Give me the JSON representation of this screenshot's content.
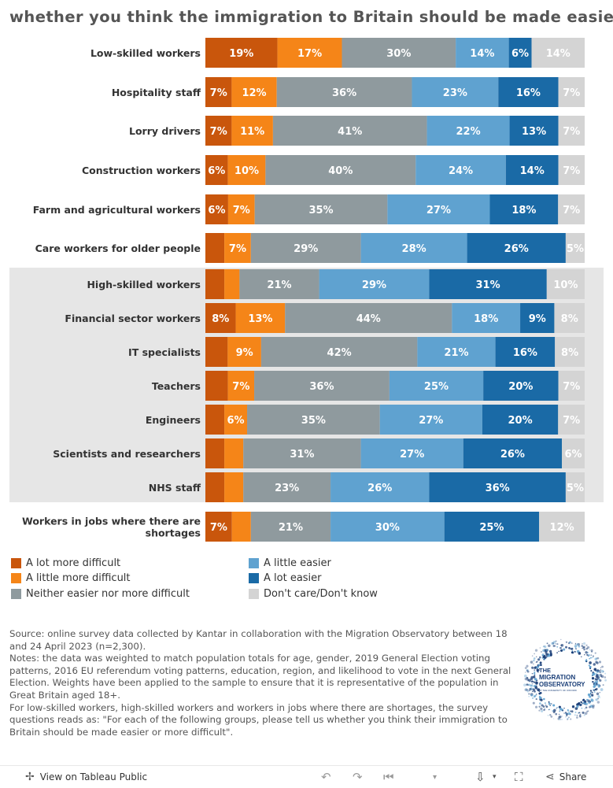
{
  "title": "whether you think the immigration to Britain should be made easier or",
  "chart_data": {
    "type": "bar",
    "orientation": "horizontal",
    "stacked": true,
    "normalized": true,
    "series": [
      {
        "name": "A lot more difficult",
        "color": "#c9560c"
      },
      {
        "name": "A little more difficult",
        "color": "#f58518"
      },
      {
        "name": "Neither easier nor more difficult",
        "color": "#8f9a9e"
      },
      {
        "name": "A little easier",
        "color": "#5fa2d0"
      },
      {
        "name": "A lot easier",
        "color": "#1a6aa6"
      },
      {
        "name": "Don't care/Don't know",
        "color": "#d4d4d4"
      }
    ],
    "rows": [
      {
        "label": "Low-skilled workers",
        "values": [
          19,
          17,
          30,
          14,
          6,
          14
        ],
        "labels": [
          "19%",
          "17%",
          "30%",
          "14%",
          "6%",
          "14%"
        ]
      },
      {
        "label": "Hospitality staff",
        "values": [
          7,
          12,
          36,
          23,
          16,
          7
        ],
        "labels": [
          "7%",
          "12%",
          "36%",
          "23%",
          "16%",
          "7%"
        ]
      },
      {
        "label": "Lorry drivers",
        "values": [
          7,
          11,
          41,
          22,
          13,
          7
        ],
        "labels": [
          "7%",
          "11%",
          "41%",
          "22%",
          "13%",
          "7%"
        ]
      },
      {
        "label": "Construction workers",
        "values": [
          6,
          10,
          40,
          24,
          14,
          7
        ],
        "labels": [
          "6%",
          "10%",
          "40%",
          "24%",
          "14%",
          "7%"
        ]
      },
      {
        "label": "Farm and agricultural workers",
        "values": [
          6,
          7,
          35,
          27,
          18,
          7
        ],
        "labels": [
          "6%",
          "7%",
          "35%",
          "27%",
          "18%",
          "7%"
        ]
      },
      {
        "label": "Care workers for older people",
        "values": [
          5,
          7,
          29,
          28,
          26,
          5
        ],
        "labels": [
          "",
          "7%",
          "29%",
          "28%",
          "26%",
          "5%"
        ]
      },
      {
        "label": "High-skilled workers",
        "values": [
          5,
          4,
          21,
          29,
          31,
          10
        ],
        "labels": [
          "",
          "",
          "21%",
          "29%",
          "31%",
          "10%"
        ]
      },
      {
        "label": "Financial sector workers",
        "values": [
          8,
          13,
          44,
          18,
          9,
          8
        ],
        "labels": [
          "8%",
          "13%",
          "44%",
          "18%",
          "9%",
          "8%"
        ]
      },
      {
        "label": "IT specialists",
        "values": [
          6,
          9,
          42,
          21,
          16,
          8
        ],
        "labels": [
          "",
          "9%",
          "42%",
          "21%",
          "16%",
          "8%"
        ]
      },
      {
        "label": "Teachers",
        "values": [
          6,
          7,
          36,
          25,
          20,
          7
        ],
        "labels": [
          "",
          "7%",
          "36%",
          "25%",
          "20%",
          "7%"
        ]
      },
      {
        "label": "Engineers",
        "values": [
          5,
          6,
          35,
          27,
          20,
          7
        ],
        "labels": [
          "",
          "6%",
          "35%",
          "27%",
          "20%",
          "7%"
        ]
      },
      {
        "label": "Scientists and researchers",
        "values": [
          5,
          5,
          31,
          27,
          26,
          6
        ],
        "labels": [
          "",
          "",
          "31%",
          "27%",
          "26%",
          "6%"
        ]
      },
      {
        "label": "NHS staff",
        "values": [
          5,
          5,
          23,
          26,
          36,
          5
        ],
        "labels": [
          "",
          "",
          "23%",
          "26%",
          "36%",
          "5%"
        ]
      },
      {
        "label": "Workers in jobs where there are shortages",
        "values": [
          7,
          5,
          21,
          30,
          25,
          12
        ],
        "labels": [
          "7%",
          "",
          "21%",
          "30%",
          "25%",
          "12%"
        ]
      }
    ],
    "highlighted_group": [
      "High-skilled workers",
      "Financial sector workers",
      "IT specialists",
      "Teachers",
      "Engineers",
      "Scientists and researchers",
      "NHS staff"
    ],
    "legend_position": "bottom"
  },
  "source": {
    "line1": "Source: online survey data collected by Kantar in collaboration with the Migration Observatory between 18 and 24 April 2023 (n=2,300).",
    "line2": "Notes: the data was weighted to match population totals for age, gender, 2019 General Election voting patterns, 2016 EU referendum voting patterns, education, region, and likelihood to vote in the next General Election. Weights have been applied to the sample to ensure that it is representative of the population in Great Britain aged 18+.",
    "line3": "For low-skilled workers, high-skilled workers and workers in jobs where there are shortages, the survey questions reads as: \"For each of the following groups, please tell us whether you think their immigration to Britain should be made easier or more difficult\"."
  },
  "logo": {
    "line1": "THE",
    "line2": "MIGRATION",
    "line3": "OBSERVATORY",
    "line4": "AT THE UNIVERSITY OF OXFORD"
  },
  "footer": {
    "view_label": "View on Tableau Public",
    "share_label": "Share",
    "icons": [
      "tableau-icon",
      "undo-icon",
      "redo-icon",
      "revert-icon",
      "download-icon",
      "fullscreen-icon",
      "share-icon"
    ]
  }
}
